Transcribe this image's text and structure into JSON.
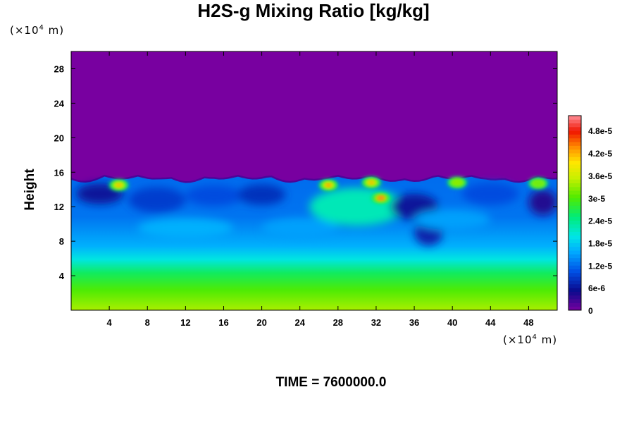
{
  "chart_data": {
    "type": "heatmap",
    "title": "H2S-g Mixing Ratio [kg/kg]",
    "ylabel": "Height",
    "x_unit_prefix": "(×10",
    "x_unit_exp": "4",
    "x_unit_suffix": " m)",
    "y_unit_prefix": "(×10",
    "y_unit_exp": "4",
    "y_unit_suffix": " m)",
    "xlim": [
      0,
      51
    ],
    "ylim": [
      0,
      30
    ],
    "x_ticks": [
      "4",
      "8",
      "12",
      "16",
      "20",
      "24",
      "28",
      "32",
      "36",
      "40",
      "44",
      "48"
    ],
    "x_tick_values": [
      4,
      8,
      12,
      16,
      20,
      24,
      28,
      32,
      36,
      40,
      44,
      48
    ],
    "y_ticks": [
      "4",
      "8",
      "12",
      "16",
      "20",
      "24",
      "28"
    ],
    "y_tick_values": [
      4,
      8,
      12,
      16,
      20,
      24,
      28
    ],
    "colorbar": {
      "min": 0,
      "max": 5.2e-05,
      "tick_labels": [
        "0",
        "6e-6",
        "1.2e-5",
        "1.8e-5",
        "2.4e-5",
        "3e-5",
        "3.6e-5",
        "4.2e-5",
        "4.8e-5"
      ],
      "tick_values": [
        0,
        6e-06,
        1.2e-05,
        1.8e-05,
        2.4e-05,
        3e-05,
        3.6e-05,
        4.2e-05,
        4.8e-05
      ]
    },
    "boundary_height": 15.5,
    "hotspots": [
      {
        "x": 5,
        "y": 14.5,
        "value": 4.4e-05
      },
      {
        "x": 27,
        "y": 14.5,
        "value": 4.6e-05
      },
      {
        "x": 31.5,
        "y": 14.8,
        "value": 4.4e-05
      },
      {
        "x": 32.5,
        "y": 13,
        "value": 5e-05
      },
      {
        "x": 40.5,
        "y": 14.8,
        "value": 3.6e-05
      },
      {
        "x": 49,
        "y": 14.7,
        "value": 3.4e-05
      }
    ]
  },
  "footer": {
    "time_label": "TIME = 7600000.0"
  }
}
